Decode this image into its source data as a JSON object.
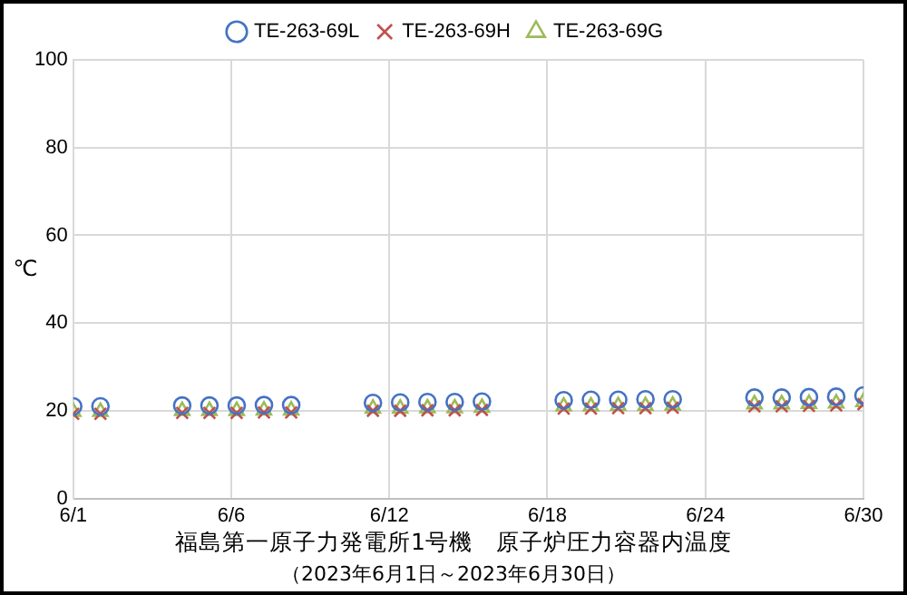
{
  "chart_data": {
    "type": "scatter",
    "title": "福島第一原子力発電所1号機　原子炉圧力容器内温度",
    "subtitle": "（2023年6月1日～2023年6月30日）",
    "ylabel": "℃",
    "x": [
      "2023-06-01",
      "2023-06-02",
      "2023-06-05",
      "2023-06-06",
      "2023-06-07",
      "2023-06-08",
      "2023-06-09",
      "2023-06-12",
      "2023-06-13",
      "2023-06-14",
      "2023-06-15",
      "2023-06-16",
      "2023-06-19",
      "2023-06-20",
      "2023-06-21",
      "2023-06-22",
      "2023-06-23",
      "2023-06-26",
      "2023-06-27",
      "2023-06-28",
      "2023-06-29",
      "2023-06-30"
    ],
    "series": [
      {
        "name": "TE-263-69L",
        "color": "#4472c4",
        "marker": "circle",
        "values": [
          21,
          21,
          21.2,
          21.2,
          21.2,
          21.3,
          21.3,
          21.8,
          21.9,
          22,
          22,
          22.1,
          22.4,
          22.5,
          22.5,
          22.6,
          22.6,
          23,
          23,
          23.1,
          23.2,
          23.5
        ]
      },
      {
        "name": "TE-263-69H",
        "color": "#c0504d",
        "marker": "cross",
        "values": [
          19.3,
          19.3,
          19.5,
          19.5,
          19.5,
          19.6,
          19.6,
          20,
          20,
          20.1,
          20.1,
          20.2,
          20.5,
          20.5,
          20.6,
          20.6,
          20.7,
          21,
          21,
          21.1,
          21.2,
          21.5
        ]
      },
      {
        "name": "TE-263-69G",
        "color": "#9bbb59",
        "marker": "triangle",
        "values": [
          19.8,
          19.8,
          20,
          20,
          20,
          20.1,
          20.1,
          20.5,
          20.5,
          20.6,
          20.6,
          20.7,
          21,
          21,
          21.1,
          21.1,
          21.2,
          21.5,
          21.5,
          21.6,
          21.7,
          22
        ]
      }
    ],
    "xlim": [
      "2023-06-01",
      "2023-06-30"
    ],
    "xticks": [
      {
        "value": "2023-06-01",
        "label": "6/1"
      },
      {
        "value": "2023-06-06T19:12",
        "label": "6/6"
      },
      {
        "value": "2023-06-12T14:24",
        "label": "6/12"
      },
      {
        "value": "2023-06-18T09:36",
        "label": "6/18"
      },
      {
        "value": "2023-06-24T04:48",
        "label": "6/24"
      },
      {
        "value": "2023-06-30",
        "label": "6/30"
      }
    ],
    "ylim": [
      0,
      100
    ],
    "yticks": [
      0,
      20,
      40,
      60,
      80,
      100
    ],
    "grid": true,
    "legend": "top"
  }
}
